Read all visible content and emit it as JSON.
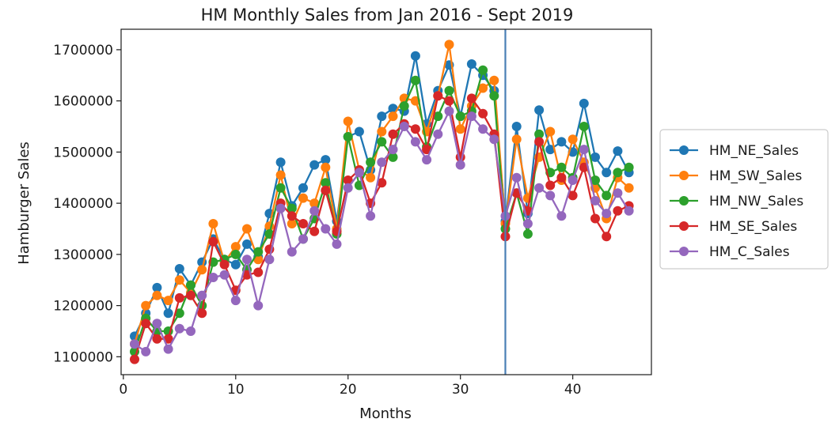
{
  "chart_data": {
    "type": "line",
    "title": "HM Monthly Sales from Jan 2016 - Sept 2019",
    "xlabel": "Months",
    "ylabel": "Hamburger Sales",
    "xlim": [
      -0.2,
      47
    ],
    "ylim": [
      1065000,
      1740000
    ],
    "xticks": [
      0,
      10,
      20,
      30,
      40
    ],
    "xtick_labels": [
      "0",
      "10",
      "20",
      "30",
      "40"
    ],
    "yticks": [
      1100000,
      1200000,
      1300000,
      1400000,
      1500000,
      1600000,
      1700000
    ],
    "ytick_labels": [
      "1100000",
      "1200000",
      "1300000",
      "1400000",
      "1500000",
      "1600000",
      "1700000"
    ],
    "grid": false,
    "legend_position": "outside-right",
    "x": [
      1,
      2,
      3,
      4,
      5,
      6,
      7,
      8,
      9,
      10,
      11,
      12,
      13,
      14,
      15,
      16,
      17,
      18,
      19,
      20,
      21,
      22,
      23,
      24,
      25,
      26,
      27,
      28,
      29,
      30,
      31,
      32,
      33,
      34,
      35,
      36,
      37,
      38,
      39,
      40,
      41,
      42,
      43,
      44,
      45
    ],
    "vertical_line": {
      "x": 34,
      "color": "#4a7fb5"
    },
    "series": [
      {
        "name": "HM_NE_Sales",
        "color": "#1f77b4",
        "values": [
          1140000,
          1185000,
          1235000,
          1185000,
          1272000,
          1240000,
          1285000,
          1330000,
          1290000,
          1280000,
          1320000,
          1295000,
          1380000,
          1480000,
          1395000,
          1430000,
          1475000,
          1485000,
          1365000,
          1530000,
          1540000,
          1465000,
          1570000,
          1585000,
          1580000,
          1688000,
          1555000,
          1620000,
          1670000,
          1570000,
          1672000,
          1650000,
          1620000,
          1365000,
          1550000,
          1380000,
          1582000,
          1505000,
          1520000,
          1500000,
          1595000,
          1490000,
          1460000,
          1502000,
          1460000
        ]
      },
      {
        "name": "HM_SW_Sales",
        "color": "#ff7f0e",
        "values": [
          1125000,
          1200000,
          1220000,
          1210000,
          1250000,
          1225000,
          1270000,
          1360000,
          1285000,
          1315000,
          1350000,
          1290000,
          1355000,
          1455000,
          1360000,
          1410000,
          1400000,
          1470000,
          1350000,
          1560000,
          1465000,
          1450000,
          1540000,
          1570000,
          1605000,
          1600000,
          1540000,
          1610000,
          1710000,
          1545000,
          1590000,
          1625000,
          1640000,
          1360000,
          1525000,
          1410000,
          1490000,
          1540000,
          1445000,
          1525000,
          1480000,
          1430000,
          1370000,
          1450000,
          1430000
        ]
      },
      {
        "name": "HM_NW_Sales",
        "color": "#2ca02c",
        "values": [
          1110000,
          1175000,
          1150000,
          1150000,
          1185000,
          1240000,
          1200000,
          1285000,
          1290000,
          1300000,
          1270000,
          1305000,
          1340000,
          1430000,
          1390000,
          1330000,
          1370000,
          1440000,
          1340000,
          1530000,
          1435000,
          1480000,
          1520000,
          1490000,
          1590000,
          1640000,
          1510000,
          1570000,
          1620000,
          1570000,
          1580000,
          1660000,
          1610000,
          1350000,
          1420000,
          1340000,
          1535000,
          1460000,
          1470000,
          1450000,
          1550000,
          1445000,
          1415000,
          1460000,
          1470000
        ]
      },
      {
        "name": "HM_SE_Sales",
        "color": "#d62728",
        "values": [
          1095000,
          1165000,
          1135000,
          1135000,
          1215000,
          1220000,
          1185000,
          1325000,
          1280000,
          1230000,
          1260000,
          1265000,
          1310000,
          1400000,
          1375000,
          1360000,
          1345000,
          1425000,
          1345000,
          1445000,
          1465000,
          1400000,
          1440000,
          1535000,
          1555000,
          1545000,
          1505000,
          1610000,
          1600000,
          1490000,
          1605000,
          1575000,
          1535000,
          1335000,
          1420000,
          1385000,
          1520000,
          1435000,
          1450000,
          1415000,
          1470000,
          1370000,
          1335000,
          1385000,
          1395000
        ]
      },
      {
        "name": "HM_C_Sales",
        "color": "#9467bd",
        "values": [
          1125000,
          1110000,
          1165000,
          1115000,
          1155000,
          1150000,
          1220000,
          1255000,
          1260000,
          1210000,
          1290000,
          1200000,
          1290000,
          1390000,
          1305000,
          1330000,
          1385000,
          1350000,
          1320000,
          1430000,
          1460000,
          1375000,
          1480000,
          1505000,
          1550000,
          1520000,
          1485000,
          1535000,
          1580000,
          1475000,
          1570000,
          1545000,
          1525000,
          1375000,
          1450000,
          1360000,
          1430000,
          1415000,
          1375000,
          1445000,
          1505000,
          1405000,
          1380000,
          1420000,
          1385000
        ]
      }
    ]
  }
}
